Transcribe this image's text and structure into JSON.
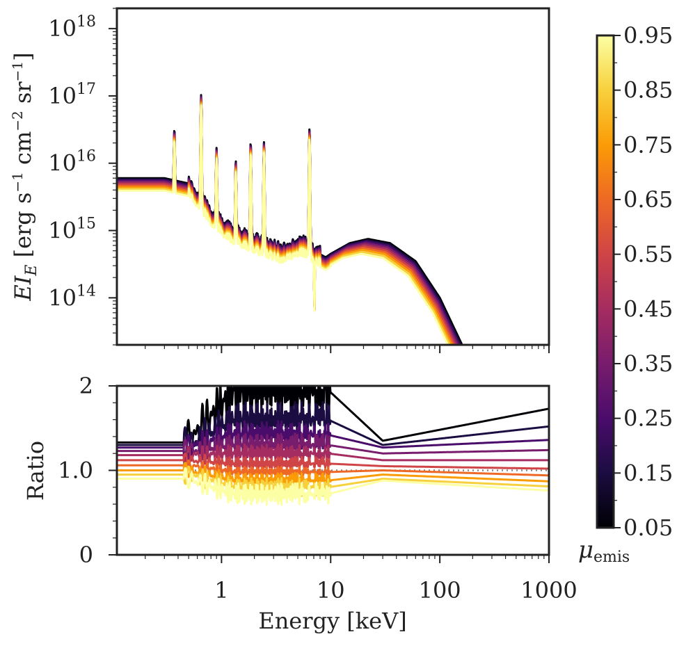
{
  "chart_data": [
    {
      "type": "line",
      "panel": "top",
      "xscale": "log",
      "yscale": "log",
      "xlim": [
        0.11,
        1000
      ],
      "ylim": [
        20000000000000.0,
        2e+18
      ],
      "ylabel": "EI_E [erg s^-1 cm^-2 sr^-1]",
      "ylabel_parts": {
        "main": "EI",
        "sub": "E",
        "units": "[erg s",
        "exp1": "−1",
        "cm": " cm",
        "exp2": "−2",
        "sr": " sr",
        "exp3": "−1",
        "close": "]"
      },
      "y_ticks": [
        {
          "base": "10",
          "exp": "14",
          "value": 100000000000000.0
        },
        {
          "base": "10",
          "exp": "15",
          "value": 1000000000000000.0
        },
        {
          "base": "10",
          "exp": "16",
          "value": 1e+16
        },
        {
          "base": "10",
          "exp": "17",
          "value": 1e+17
        },
        {
          "base": "10",
          "exp": "18",
          "value": 1e+18
        }
      ],
      "series_count": 10,
      "series_mu": [
        0.05,
        0.15,
        0.25,
        0.35,
        0.45,
        0.55,
        0.65,
        0.75,
        0.85,
        0.95
      ],
      "continuum_low_energy": [
        [
          0.11,
          6000000000000000.0
        ],
        [
          0.3,
          6000000000000000.0
        ],
        [
          0.5,
          5000000000000000.0
        ],
        [
          0.8,
          1800000000000000.0
        ],
        [
          1.2,
          1000000000000000.0
        ],
        [
          2,
          700000000000000.0
        ],
        [
          3.5,
          500000000000000.0
        ],
        [
          5.5,
          650000000000000.0
        ],
        [
          7,
          500000000000000.0
        ],
        [
          9,
          400000000000000.0
        ],
        [
          10,
          450000000000000.0
        ]
      ],
      "hump": [
        [
          10,
          450000000000000.0
        ],
        [
          15,
          650000000000000.0
        ],
        [
          22,
          750000000000000.0
        ],
        [
          35,
          650000000000000.0
        ],
        [
          60,
          350000000000000.0
        ],
        [
          100,
          100000000000000.0
        ],
        [
          160,
          20000000000000.0
        ]
      ],
      "emission_lines": [
        {
          "energy_keV": 0.65,
          "peak": 1e+17
        },
        {
          "energy_keV": 0.37,
          "peak": 2.7e+16
        },
        {
          "energy_keV": 0.9,
          "peak": 1.5e+16
        },
        {
          "energy_keV": 1.35,
          "peak": 1e+16
        },
        {
          "energy_keV": 1.85,
          "peak": 2e+16
        },
        {
          "energy_keV": 2.45,
          "peak": 2e+16
        },
        {
          "energy_keV": 6.4,
          "peak": 3.2e+16
        }
      ],
      "absorption_edge": {
        "energy_keV": 7.1,
        "min": 55000000000000.0
      }
    },
    {
      "type": "line",
      "panel": "bottom",
      "xscale": "log",
      "xlim": [
        0.11,
        1000
      ],
      "ylim": [
        0,
        2
      ],
      "xlabel": "Energy [keV]",
      "ylabel": "Ratio",
      "x_ticks": [
        "1",
        "10",
        "100",
        "1000"
      ],
      "x_tick_values": [
        1,
        10,
        100,
        1000
      ],
      "y_ticks": [
        "0",
        "1.0",
        "2"
      ],
      "y_tick_values": [
        0,
        1,
        2
      ],
      "reference_line": {
        "y": 1.0,
        "style": "dotted",
        "color": "#888888"
      },
      "series": [
        {
          "mu": 0.05,
          "low_energy": 1.33,
          "mid_energy_peak": 1.95,
          "at_30keV": 1.35,
          "at_1000keV": 1.73
        },
        {
          "mu": 0.15,
          "low_energy": 1.3,
          "mid_energy_peak": 1.6,
          "at_30keV": 1.3,
          "at_1000keV": 1.52
        },
        {
          "mu": 0.25,
          "low_energy": 1.27,
          "mid_energy_peak": 1.42,
          "at_30keV": 1.27,
          "at_1000keV": 1.36
        },
        {
          "mu": 0.35,
          "low_energy": 1.23,
          "mid_energy_peak": 1.3,
          "at_30keV": 1.2,
          "at_1000keV": 1.24
        },
        {
          "mu": 0.45,
          "low_energy": 1.18,
          "mid_energy_peak": 1.2,
          "at_30keV": 1.12,
          "at_1000keV": 1.12
        },
        {
          "mu": 0.55,
          "low_energy": 1.12,
          "mid_energy_peak": 1.08,
          "at_30keV": 1.05,
          "at_1000keV": 1.02
        },
        {
          "mu": 0.65,
          "low_energy": 1.06,
          "mid_energy_peak": 0.98,
          "at_30keV": 1.0,
          "at_1000keV": 0.94
        },
        {
          "mu": 0.75,
          "low_energy": 1.0,
          "mid_energy_peak": 0.88,
          "at_30keV": 0.95,
          "at_1000keV": 0.87
        },
        {
          "mu": 0.85,
          "low_energy": 0.95,
          "mid_energy_peak": 0.8,
          "at_30keV": 0.9,
          "at_1000keV": 0.81
        },
        {
          "mu": 0.95,
          "low_energy": 0.9,
          "mid_energy_peak": 0.72,
          "at_30keV": 0.88,
          "at_1000keV": 0.76
        }
      ]
    }
  ],
  "colorbar": {
    "colormap": "inferno",
    "label_main": "μ",
    "label_sub": "emis",
    "range": [
      0.05,
      0.95
    ],
    "ticks": [
      "0.05",
      "0.15",
      "0.25",
      "0.35",
      "0.45",
      "0.55",
      "0.65",
      "0.75",
      "0.85",
      "0.95"
    ],
    "tick_values": [
      0.05,
      0.15,
      0.25,
      0.35,
      0.45,
      0.55,
      0.65,
      0.75,
      0.85,
      0.95
    ],
    "colors": [
      "#000004",
      "#1b0c41",
      "#4a0c6b",
      "#781c6d",
      "#a52c60",
      "#cf4446",
      "#ed6925",
      "#fb9b06",
      "#f7d13d",
      "#fcffa4"
    ]
  }
}
